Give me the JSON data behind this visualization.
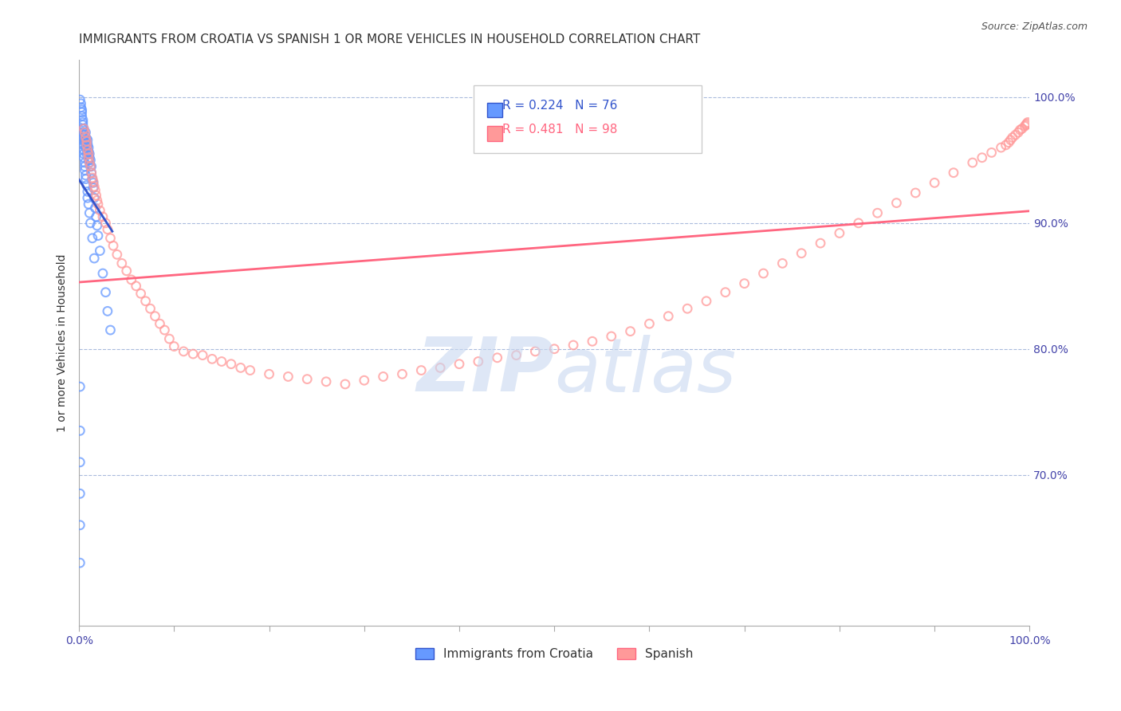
{
  "title": "IMMIGRANTS FROM CROATIA VS SPANISH 1 OR MORE VEHICLES IN HOUSEHOLD CORRELATION CHART",
  "source": "Source: ZipAtlas.com",
  "xlabel_bottom": "",
  "ylabel": "1 or more Vehicles in Household",
  "xmin": 0.0,
  "xmax": 1.0,
  "ymin": 0.58,
  "ymax": 1.03,
  "xtick_labels": [
    "0.0%",
    "100.0%"
  ],
  "ytick_labels_right": [
    "70.0%",
    "80.0%",
    "90.0%",
    "100.0%"
  ],
  "ytick_vals_right": [
    0.7,
    0.8,
    0.9,
    1.0
  ],
  "legend_labels": [
    "Immigrants from Croatia",
    "Spanish"
  ],
  "r_blue": 0.224,
  "n_blue": 76,
  "r_pink": 0.481,
  "n_pink": 98,
  "blue_color": "#6699FF",
  "pink_color": "#FF9999",
  "blue_line_color": "#3355CC",
  "pink_line_color": "#FF6680",
  "watermark_text": "ZIPAtlas",
  "watermark_zip_color": "#C8D8F0",
  "watermark_atlas_color": "#C8D8F0",
  "title_fontsize": 11,
  "axis_label_fontsize": 10,
  "tick_fontsize": 10,
  "scatter_size": 60,
  "scatter_alpha": 0.5,
  "blue_scatter_x": [
    0.005,
    0.005,
    0.006,
    0.006,
    0.007,
    0.007,
    0.007,
    0.007,
    0.008,
    0.008,
    0.008,
    0.008,
    0.009,
    0.009,
    0.009,
    0.009,
    0.01,
    0.01,
    0.01,
    0.01,
    0.011,
    0.011,
    0.011,
    0.012,
    0.012,
    0.013,
    0.013,
    0.014,
    0.015,
    0.015,
    0.016,
    0.017,
    0.018,
    0.019,
    0.02,
    0.022,
    0.025,
    0.028,
    0.03,
    0.033,
    0.001,
    0.002,
    0.002,
    0.003,
    0.003,
    0.003,
    0.004,
    0.004,
    0.004,
    0.004,
    0.004,
    0.005,
    0.005,
    0.005,
    0.005,
    0.005,
    0.005,
    0.006,
    0.006,
    0.006,
    0.007,
    0.007,
    0.008,
    0.009,
    0.009,
    0.01,
    0.011,
    0.012,
    0.014,
    0.016,
    0.001,
    0.001,
    0.001,
    0.001,
    0.001,
    0.001
  ],
  "blue_scatter_y": [
    0.97,
    0.975,
    0.965,
    0.97,
    0.96,
    0.965,
    0.968,
    0.972,
    0.955,
    0.96,
    0.963,
    0.967,
    0.958,
    0.961,
    0.963,
    0.966,
    0.95,
    0.955,
    0.957,
    0.96,
    0.948,
    0.952,
    0.955,
    0.945,
    0.95,
    0.94,
    0.945,
    0.935,
    0.928,
    0.932,
    0.92,
    0.912,
    0.905,
    0.898,
    0.89,
    0.878,
    0.86,
    0.845,
    0.83,
    0.815,
    0.998,
    0.995,
    0.992,
    0.99,
    0.988,
    0.985,
    0.982,
    0.98,
    0.978,
    0.975,
    0.972,
    0.968,
    0.965,
    0.962,
    0.958,
    0.955,
    0.952,
    0.948,
    0.945,
    0.942,
    0.938,
    0.935,
    0.93,
    0.925,
    0.92,
    0.915,
    0.908,
    0.9,
    0.888,
    0.872,
    0.77,
    0.735,
    0.71,
    0.685,
    0.66,
    0.63
  ],
  "pink_scatter_x": [
    0.005,
    0.006,
    0.007,
    0.008,
    0.008,
    0.009,
    0.01,
    0.01,
    0.011,
    0.012,
    0.013,
    0.014,
    0.015,
    0.016,
    0.017,
    0.018,
    0.019,
    0.02,
    0.022,
    0.025,
    0.028,
    0.03,
    0.033,
    0.036,
    0.04,
    0.045,
    0.05,
    0.055,
    0.06,
    0.065,
    0.07,
    0.075,
    0.08,
    0.085,
    0.09,
    0.095,
    0.1,
    0.11,
    0.12,
    0.13,
    0.14,
    0.15,
    0.16,
    0.17,
    0.18,
    0.2,
    0.22,
    0.24,
    0.26,
    0.28,
    0.3,
    0.32,
    0.34,
    0.36,
    0.38,
    0.4,
    0.42,
    0.44,
    0.46,
    0.48,
    0.5,
    0.52,
    0.54,
    0.56,
    0.58,
    0.6,
    0.62,
    0.64,
    0.66,
    0.68,
    0.7,
    0.72,
    0.74,
    0.76,
    0.78,
    0.8,
    0.82,
    0.84,
    0.86,
    0.88,
    0.9,
    0.92,
    0.94,
    0.95,
    0.96,
    0.97,
    0.975,
    0.978,
    0.98,
    0.982,
    0.985,
    0.988,
    0.99,
    0.992,
    0.995,
    0.996,
    0.997,
    0.998
  ],
  "pink_scatter_y": [
    0.975,
    0.972,
    0.968,
    0.965,
    0.962,
    0.958,
    0.955,
    0.952,
    0.948,
    0.945,
    0.94,
    0.936,
    0.933,
    0.929,
    0.926,
    0.922,
    0.918,
    0.915,
    0.91,
    0.905,
    0.9,
    0.895,
    0.888,
    0.882,
    0.875,
    0.868,
    0.862,
    0.855,
    0.85,
    0.844,
    0.838,
    0.832,
    0.826,
    0.82,
    0.815,
    0.808,
    0.802,
    0.798,
    0.796,
    0.795,
    0.792,
    0.79,
    0.788,
    0.785,
    0.783,
    0.78,
    0.778,
    0.776,
    0.774,
    0.772,
    0.775,
    0.778,
    0.78,
    0.783,
    0.785,
    0.788,
    0.79,
    0.793,
    0.795,
    0.798,
    0.8,
    0.803,
    0.806,
    0.81,
    0.814,
    0.82,
    0.826,
    0.832,
    0.838,
    0.845,
    0.852,
    0.86,
    0.868,
    0.876,
    0.884,
    0.892,
    0.9,
    0.908,
    0.916,
    0.924,
    0.932,
    0.94,
    0.948,
    0.952,
    0.956,
    0.96,
    0.962,
    0.964,
    0.966,
    0.968,
    0.97,
    0.972,
    0.974,
    0.975,
    0.977,
    0.978,
    0.979,
    0.98
  ]
}
